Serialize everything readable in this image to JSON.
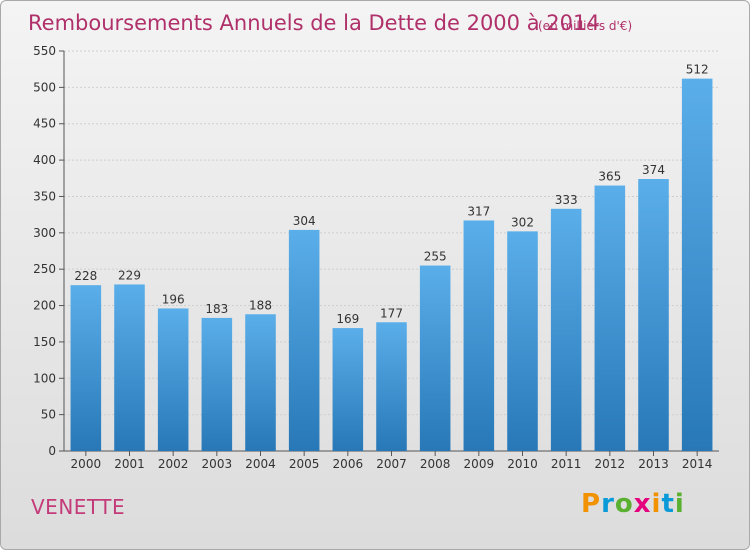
{
  "chart_data": {
    "type": "bar",
    "title": "Remboursements Annuels de la Dette de 2000 à 2014",
    "subtitle": "(en milliers d'€)",
    "categories": [
      "2000",
      "2001",
      "2002",
      "2003",
      "2004",
      "2005",
      "2006",
      "2007",
      "2008",
      "2009",
      "2010",
      "2011",
      "2012",
      "2013",
      "2014"
    ],
    "values": [
      228,
      229,
      196,
      183,
      188,
      304,
      169,
      177,
      255,
      317,
      302,
      333,
      365,
      374,
      512
    ],
    "ylim": [
      0,
      550
    ],
    "yticks": [
      0,
      50,
      100,
      150,
      200,
      250,
      300,
      350,
      400,
      450,
      500,
      550
    ],
    "grid": true,
    "xlabel": "",
    "ylabel": ""
  },
  "location": "VENETTE",
  "logo": {
    "text": "Proxiti",
    "letters": [
      "P",
      "r",
      "o",
      "x",
      "i",
      "t",
      "i"
    ],
    "colors": [
      "#f39200",
      "#0a9ad8",
      "#5ab031",
      "#e5007e",
      "#f39200",
      "#0a9ad8",
      "#5ab031"
    ]
  },
  "colors": {
    "bar_top": "#5aaee9",
    "bar_bottom": "#2878b8",
    "title": "#b0306a",
    "grid": "#cfcfcf"
  }
}
